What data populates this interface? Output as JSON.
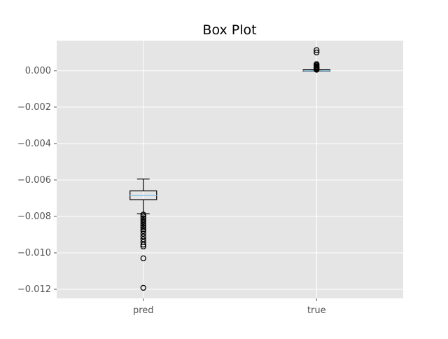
{
  "chart_data": {
    "type": "box",
    "title": "Box Plot",
    "categories": [
      "pred",
      "true"
    ],
    "ylim": [
      -0.0125,
      0.00165
    ],
    "yticks": [
      0.0,
      -0.002,
      -0.004,
      -0.006,
      -0.008,
      -0.01,
      -0.012
    ],
    "ytick_labels": [
      "0.000",
      "−0.002",
      "−0.004",
      "−0.006",
      "−0.008",
      "−0.010",
      "−0.012"
    ],
    "grid": true,
    "boxes": [
      {
        "name": "pred",
        "whisker_low": -0.00785,
        "q1": -0.00708,
        "median": -0.00685,
        "q3": -0.0066,
        "whisker_high": -0.00595,
        "fliers": [
          -0.0079,
          -0.008,
          -0.0081,
          -0.0082,
          -0.0083,
          -0.0084,
          -0.0085,
          -0.0086,
          -0.0087,
          -0.0088,
          -0.00895,
          -0.0091,
          -0.00925,
          -0.0094,
          -0.00955,
          -0.00965,
          -0.0103,
          -0.01192
        ]
      },
      {
        "name": "true",
        "whisker_low": -1e-05,
        "q1": -1e-05,
        "median": 0.0,
        "q3": 1e-05,
        "whisker_high": 3e-05,
        "fliers": [
          5e-05,
          8e-05,
          0.00012,
          0.00016,
          0.0002,
          0.00024,
          0.0003,
          0.00036,
          0.001,
          0.00113
        ]
      }
    ]
  },
  "colors": {
    "axes_bg": "#e5e5e5",
    "grid": "#ffffff",
    "median": "#8ec6e8",
    "box_edge": "#000000",
    "tick_text": "#555555",
    "title_text": "#000000"
  }
}
